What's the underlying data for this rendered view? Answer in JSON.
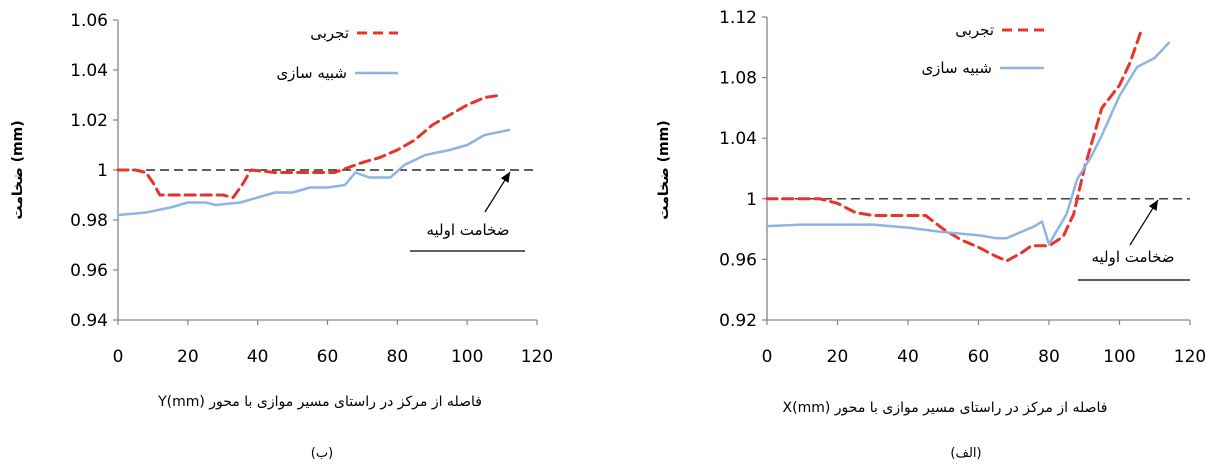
{
  "chart_data": [
    {
      "id": "b",
      "type": "line",
      "caption": "(ب)",
      "xlabel": "فاصله  از مرکز در راستای مسیر موازی با محور Y(mm)",
      "ylabel": "ضخامت (mm)",
      "xlim": [
        0,
        120
      ],
      "ylim": [
        0.94,
        1.06
      ],
      "xticks": [
        0,
        20,
        40,
        60,
        80,
        100,
        120
      ],
      "yticks": [
        "0.94",
        "0.96",
        "0.98",
        "1",
        "1.02",
        "1.04",
        "1.06"
      ],
      "reference_line": {
        "y": 1,
        "label": "ضخامت اولیه",
        "color": "#000000"
      },
      "series": [
        {
          "name": "تجربی",
          "color": "#e8332a",
          "style": "dashed",
          "x": [
            0,
            5,
            8,
            10,
            12,
            20,
            30,
            33,
            36,
            38,
            45,
            55,
            62,
            70,
            75,
            80,
            85,
            90,
            95,
            100,
            105,
            110
          ],
          "y": [
            1.0,
            1.0,
            0.999,
            0.995,
            0.99,
            0.99,
            0.99,
            0.989,
            0.995,
            1.0,
            0.999,
            0.999,
            0.999,
            1.003,
            1.005,
            1.008,
            1.012,
            1.018,
            1.022,
            1.026,
            1.029,
            1.03
          ]
        },
        {
          "name": "شبیه سازی",
          "color": "#8eb4e3",
          "style": "solid",
          "x": [
            0,
            8,
            15,
            20,
            25,
            28,
            35,
            40,
            45,
            50,
            55,
            60,
            65,
            68,
            72,
            78,
            82,
            88,
            95,
            100,
            105,
            112
          ],
          "y": [
            0.982,
            0.983,
            0.985,
            0.987,
            0.987,
            0.986,
            0.987,
            0.989,
            0.991,
            0.991,
            0.993,
            0.993,
            0.994,
            0.999,
            0.997,
            0.997,
            1.002,
            1.006,
            1.008,
            1.01,
            1.014,
            1.016
          ]
        }
      ]
    },
    {
      "id": "alef",
      "type": "line",
      "caption": "(الف)",
      "xlabel": "فاصله  از مرکز در راستای مسیر موازی با محور X(mm)",
      "ylabel": "ضخامت (mm)",
      "xlim": [
        0,
        120
      ],
      "ylim": [
        0.92,
        1.12
      ],
      "xticks": [
        0,
        20,
        40,
        60,
        80,
        100,
        120
      ],
      "yticks": [
        "0.92",
        "0.96",
        "1",
        "1.04",
        "1.08",
        "1.12"
      ],
      "reference_line": {
        "y": 1,
        "label": "ضخامت اولیه",
        "color": "#000000"
      },
      "series": [
        {
          "name": "تجربی",
          "color": "#e8332a",
          "style": "dashed",
          "x": [
            0,
            10,
            15,
            20,
            25,
            30,
            40,
            45,
            50,
            55,
            60,
            65,
            68,
            72,
            75,
            80,
            84,
            87,
            90,
            95,
            100,
            103,
            106
          ],
          "y": [
            1.0,
            1.0,
            1.0,
            0.997,
            0.991,
            0.989,
            0.989,
            0.989,
            0.98,
            0.973,
            0.968,
            0.962,
            0.959,
            0.964,
            0.969,
            0.969,
            0.975,
            0.99,
            1.02,
            1.06,
            1.075,
            1.09,
            1.11
          ]
        },
        {
          "name": "شبیه سازی",
          "color": "#8eb4e3",
          "style": "solid",
          "x": [
            0,
            10,
            20,
            30,
            40,
            50,
            60,
            65,
            68,
            72,
            76,
            78,
            80,
            82,
            85,
            88,
            92,
            95,
            100,
            105,
            110,
            114
          ],
          "y": [
            0.982,
            0.983,
            0.983,
            0.983,
            0.981,
            0.978,
            0.976,
            0.974,
            0.974,
            0.978,
            0.982,
            0.985,
            0.97,
            0.978,
            0.99,
            1.013,
            1.028,
            1.042,
            1.068,
            1.087,
            1.093,
            1.103
          ]
        }
      ]
    }
  ]
}
